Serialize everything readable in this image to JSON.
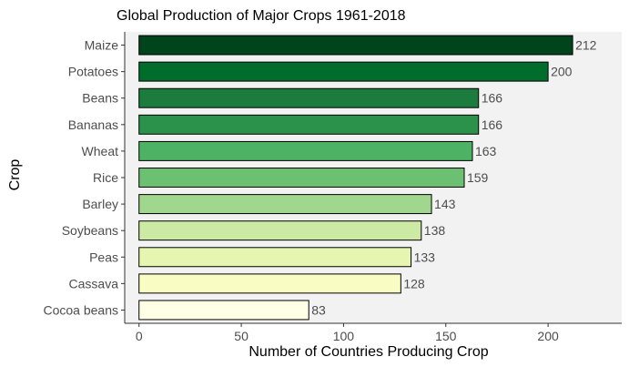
{
  "chart_data": {
    "type": "bar",
    "orientation": "horizontal",
    "title": "Global Production of Major Crops 1961-2018",
    "xlabel": "Number of Countries Producing Crop",
    "ylabel": "Crop",
    "categories": [
      "Maize",
      "Potatoes",
      "Beans",
      "Bananas",
      "Wheat",
      "Rice",
      "Barley",
      "Soybeans",
      "Peas",
      "Cassava",
      "Cocoa beans"
    ],
    "values": [
      212,
      200,
      166,
      166,
      163,
      159,
      143,
      138,
      133,
      128,
      83
    ],
    "colors": [
      "#00441b",
      "#006d2c",
      "#1b7c3d",
      "#2a924a",
      "#4eb264",
      "#6bc072",
      "#a0d68e",
      "#cdeaa5",
      "#e6f6b0",
      "#f9fcc3",
      "#ffffe5"
    ],
    "xlim": [
      -7,
      236
    ],
    "xticks": [
      0,
      50,
      100,
      150,
      200
    ],
    "grid": false,
    "legend": "none"
  }
}
